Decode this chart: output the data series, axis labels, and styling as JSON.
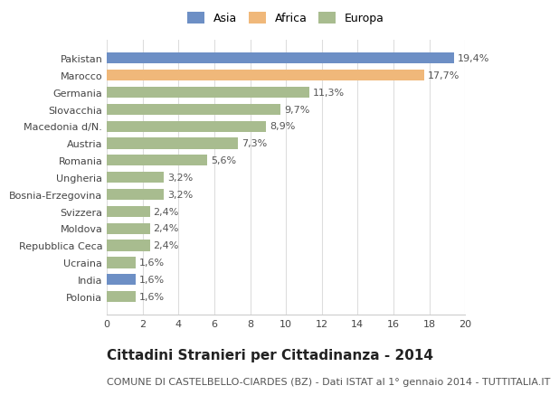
{
  "categories": [
    "Polonia",
    "India",
    "Ucraina",
    "Repubblica Ceca",
    "Moldova",
    "Svizzera",
    "Bosnia-Erzegovina",
    "Ungheria",
    "Romania",
    "Austria",
    "Macedonia d/N.",
    "Slovacchia",
    "Germania",
    "Marocco",
    "Pakistan"
  ],
  "values": [
    1.6,
    1.6,
    1.6,
    2.4,
    2.4,
    2.4,
    3.2,
    3.2,
    5.6,
    7.3,
    8.9,
    9.7,
    11.3,
    17.7,
    19.4
  ],
  "labels": [
    "1,6%",
    "1,6%",
    "1,6%",
    "2,4%",
    "2,4%",
    "2,4%",
    "3,2%",
    "3,2%",
    "5,6%",
    "7,3%",
    "8,9%",
    "9,7%",
    "11,3%",
    "17,7%",
    "19,4%"
  ],
  "colors": [
    "#a8bc8f",
    "#6d8fc5",
    "#a8bc8f",
    "#a8bc8f",
    "#a8bc8f",
    "#a8bc8f",
    "#a8bc8f",
    "#a8bc8f",
    "#a8bc8f",
    "#a8bc8f",
    "#a8bc8f",
    "#a8bc8f",
    "#a8bc8f",
    "#f0b87a",
    "#6d8fc5"
  ],
  "legend_labels": [
    "Asia",
    "Africa",
    "Europa"
  ],
  "legend_colors": [
    "#6d8fc5",
    "#f0b87a",
    "#a8bc8f"
  ],
  "title": "Cittadini Stranieri per Cittadinanza - 2014",
  "subtitle": "COMUNE DI CASTELBELLO-CIARDES (BZ) - Dati ISTAT al 1° gennaio 2014 - TUTTITALIA.IT",
  "xlim": [
    0,
    20
  ],
  "xticks": [
    0,
    2,
    4,
    6,
    8,
    10,
    12,
    14,
    16,
    18,
    20
  ],
  "background_color": "#ffffff",
  "grid_color": "#dddddd",
  "title_fontsize": 11,
  "subtitle_fontsize": 8,
  "label_fontsize": 8,
  "tick_fontsize": 8
}
